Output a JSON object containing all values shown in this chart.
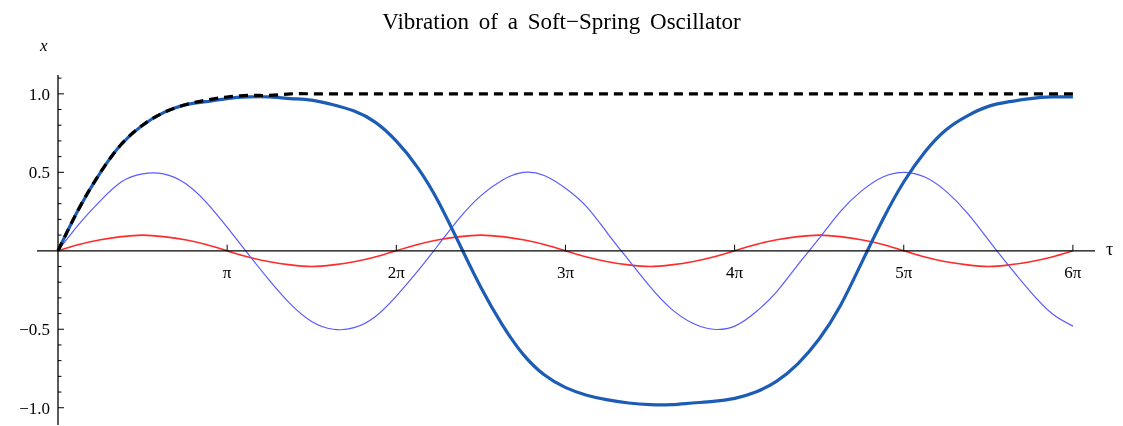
{
  "chart_data": {
    "type": "line",
    "title": "Vibration of a Soft−Spring Oscillator",
    "xlabel": "τ",
    "ylabel": "x",
    "x": [
      0,
      0.39,
      0.79,
      1.18,
      1.57,
      1.96,
      2.36,
      2.75,
      3.14,
      3.53,
      3.93,
      4.32,
      4.71,
      5.11,
      5.5,
      5.89,
      6.28,
      6.68,
      7.07,
      7.46,
      7.85,
      8.25,
      8.64,
      9.03,
      9.42,
      9.82,
      10.21,
      10.6,
      11,
      11.39,
      11.78,
      12.17,
      12.57,
      12.96,
      13.35,
      13.74,
      14.14,
      14.53,
      14.92,
      15.32,
      15.71,
      16.1,
      16.49,
      16.89,
      17.28,
      17.67,
      18.06,
      18.46,
      18.85
    ],
    "series": [
      {
        "color": "#ff2a2a",
        "values": [
          0,
          0.04,
          0.07,
          0.09,
          0.1,
          0.09,
          0.07,
          0.04,
          0,
          -0.04,
          -0.07,
          -0.09,
          -0.1,
          -0.09,
          -0.07,
          -0.04,
          0,
          0.04,
          0.07,
          0.09,
          0.1,
          0.09,
          0.07,
          0.04,
          0,
          -0.04,
          -0.07,
          -0.09,
          -0.1,
          -0.09,
          -0.07,
          -0.04,
          0,
          0.04,
          0.07,
          0.09,
          0.1,
          0.09,
          0.07,
          0.04,
          0,
          -0.04,
          -0.07,
          -0.09,
          -0.1,
          -0.09,
          -0.07,
          -0.04,
          0
        ]
      },
      {
        "color": "#5a5aff",
        "values": [
          0,
          0.17,
          0.32,
          0.44,
          0.49,
          0.49,
          0.43,
          0.31,
          0.15,
          -0.02,
          -0.19,
          -0.34,
          -0.45,
          -0.5,
          -0.49,
          -0.42,
          -0.29,
          -0.13,
          0.04,
          0.21,
          0.35,
          0.45,
          0.5,
          0.48,
          0.4,
          0.28,
          0.11,
          -0.06,
          -0.23,
          -0.37,
          -0.46,
          -0.5,
          -0.48,
          -0.39,
          -0.26,
          -0.09,
          0.08,
          0.25,
          0.38,
          0.47,
          0.5,
          0.47,
          0.38,
          0.24,
          0.07,
          -0.1,
          -0.26,
          -0.4,
          -0.48
        ]
      },
      {
        "color": "#1c5cb5",
        "values": [
          0,
          0.27,
          0.5,
          0.68,
          0.8,
          0.88,
          0.93,
          0.95,
          0.97,
          0.98,
          0.98,
          0.97,
          0.96,
          0.93,
          0.89,
          0.82,
          0.7,
          0.53,
          0.31,
          0.04,
          -0.23,
          -0.47,
          -0.66,
          -0.79,
          -0.87,
          -0.92,
          -0.95,
          -0.97,
          -0.98,
          -0.98,
          -0.97,
          -0.96,
          -0.94,
          -0.9,
          -0.83,
          -0.72,
          -0.56,
          -0.35,
          -0.08,
          0.2,
          0.44,
          0.63,
          0.77,
          0.86,
          0.92,
          0.95,
          0.97,
          0.98,
          0.98
        ]
      },
      {
        "color": "#000000",
        "line_style": "dashed",
        "values": [
          0,
          0.27,
          0.5,
          0.68,
          0.8,
          0.88,
          0.93,
          0.96,
          0.98,
          0.99,
          0.99,
          1,
          1,
          1,
          1,
          1,
          1,
          1,
          1,
          1,
          1,
          1,
          1,
          1,
          1,
          1,
          1,
          1,
          1,
          1,
          1,
          1,
          1,
          1,
          1,
          1,
          1,
          1,
          1,
          1,
          1,
          1,
          1,
          1,
          1,
          1,
          1,
          1,
          1
        ]
      }
    ],
    "xlim": [
      -0.39,
      19.26
    ],
    "ylim": [
      -1.11,
      1.12
    ],
    "xticks": [
      {
        "value": 3.1416,
        "label": "π"
      },
      {
        "value": 6.2832,
        "label": "2π"
      },
      {
        "value": 9.4248,
        "label": "3π"
      },
      {
        "value": 12.5664,
        "label": "4π"
      },
      {
        "value": 15.708,
        "label": "5π"
      },
      {
        "value": 18.8496,
        "label": "6π"
      }
    ],
    "yticks": [
      {
        "value": -1,
        "label": "−1.0"
      },
      {
        "value": -0.9,
        "label": null
      },
      {
        "value": -0.8,
        "label": null
      },
      {
        "value": -0.7,
        "label": null
      },
      {
        "value": -0.6,
        "label": null
      },
      {
        "value": -0.5,
        "label": "−0.5"
      },
      {
        "value": -0.4,
        "label": null
      },
      {
        "value": -0.3,
        "label": null
      },
      {
        "value": -0.2,
        "label": null
      },
      {
        "value": -0.1,
        "label": null
      },
      {
        "value": 0.1,
        "label": null
      },
      {
        "value": 0.2,
        "label": null
      },
      {
        "value": 0.3,
        "label": null
      },
      {
        "value": 0.4,
        "label": null
      },
      0.5,
      {
        "value": 0.6,
        "label": null
      },
      {
        "value": 0.7,
        "label": null
      },
      {
        "value": 0.8,
        "label": null
      },
      {
        "value": 0.9,
        "label": null
      },
      {
        "value": 1,
        "label": "1.0"
      },
      {
        "value": 1.1,
        "label": null
      }
    ],
    "marker": "none",
    "line_style": "solid"
  }
}
